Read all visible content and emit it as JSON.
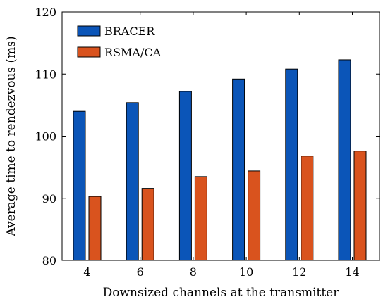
{
  "chart_data": {
    "type": "bar",
    "title": "",
    "xlabel": "Downsized channels at the transmitter",
    "ylabel": "Average time to rendezvous (ms)",
    "categories": [
      "4",
      "6",
      "8",
      "10",
      "12",
      "14"
    ],
    "ylim": [
      80,
      120
    ],
    "yticks": [
      "80",
      "90",
      "100",
      "110",
      "120"
    ],
    "grid": false,
    "legend_position": "top-left",
    "series": [
      {
        "name": "BRACER",
        "color": "#0b55b8",
        "values": [
          104.0,
          105.4,
          107.2,
          109.2,
          110.8,
          112.3
        ]
      },
      {
        "name": "RSMA/CA",
        "color": "#d9531e",
        "values": [
          90.3,
          91.6,
          93.5,
          94.4,
          96.8,
          97.6
        ]
      }
    ]
  }
}
